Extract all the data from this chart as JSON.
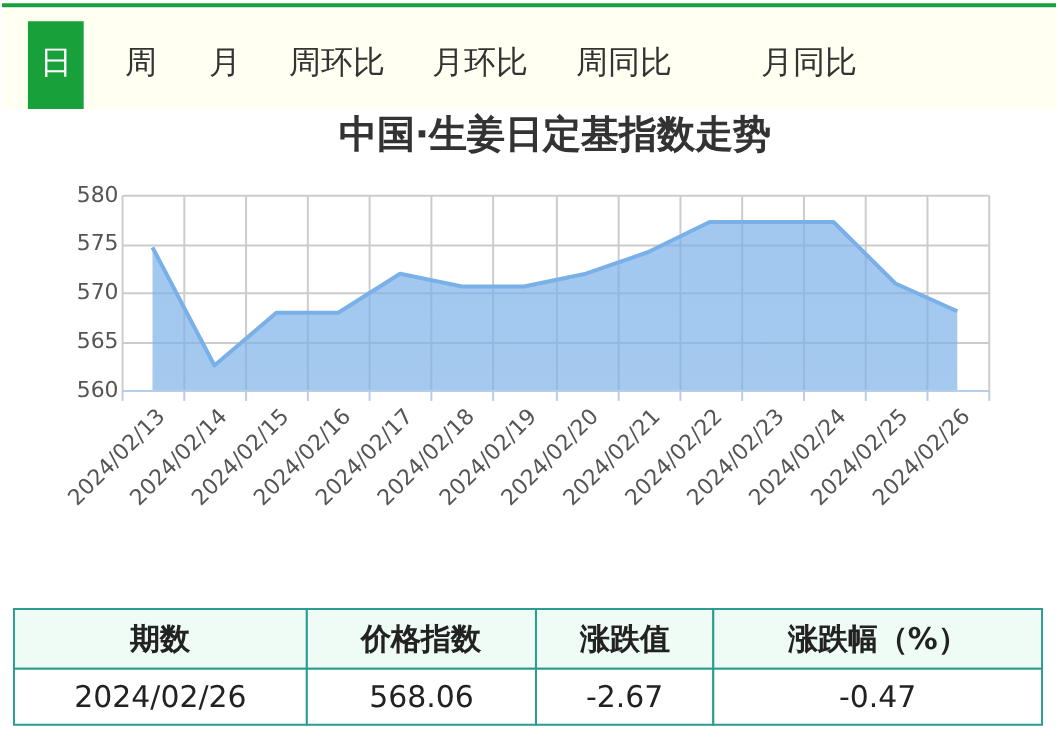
{
  "chart_data": {
    "type": "area",
    "title": "中国·生姜日定基指数走势",
    "categories": [
      "2024/02/13",
      "2024/02/14",
      "2024/02/15",
      "2024/02/16",
      "2024/02/17",
      "2024/02/18",
      "2024/02/19",
      "2024/02/20",
      "2024/02/21",
      "2024/02/22",
      "2024/02/23",
      "2024/02/24",
      "2024/02/25",
      "2024/02/26"
    ],
    "series": [
      {
        "color": "#7ab0e8",
        "values": [
          574.6,
          562.5,
          567.9,
          567.9,
          571.9,
          570.6,
          570.6,
          571.9,
          574.1,
          577.2,
          577.2,
          577.2,
          570.9,
          568.06
        ]
      }
    ],
    "ylim": [
      560,
      580
    ],
    "yticks": [
      560,
      565,
      570,
      575,
      580
    ],
    "grid": true,
    "marker": "none",
    "annotations": [
      "日",
      "周",
      "月",
      "周环比",
      "月环比",
      "周同比",
      "月同比",
      "期数",
      "价格指数",
      "涨跌值",
      "涨跌幅（%）",
      "2024/02/26",
      "568.06",
      "-2.67",
      "-0.47"
    ]
  }
}
